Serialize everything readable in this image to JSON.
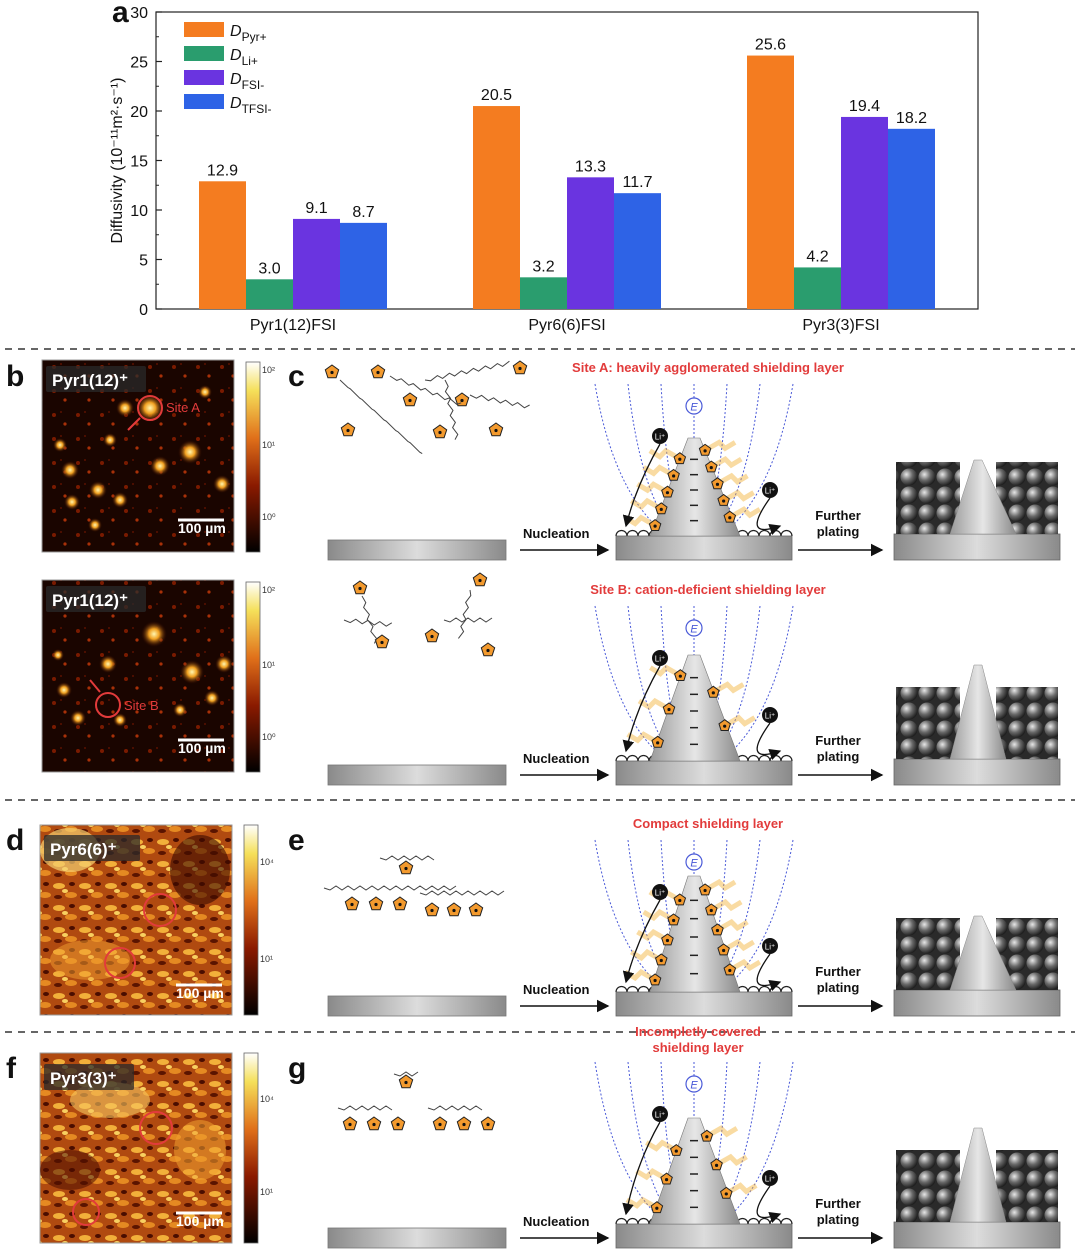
{
  "panels": {
    "a": "a",
    "b": "b",
    "c": "c",
    "d": "d",
    "e": "e",
    "f": "f",
    "g": "g"
  },
  "chart_data": {
    "type": "bar",
    "ylabel": "Diffusivity (10⁻¹¹m²·s⁻¹)",
    "xlabel": "",
    "ylim": [
      0,
      30
    ],
    "yticks": [
      0,
      5,
      10,
      15,
      20,
      25,
      30
    ],
    "categories": [
      "Pyr1(12)FSI",
      "Pyr6(6)FSI",
      "Pyr3(3)FSI"
    ],
    "series": [
      {
        "name": "D_Pyr+",
        "main": "D",
        "sub": "Pyr+",
        "color": "#f47c20",
        "values": [
          12.9,
          20.5,
          25.6
        ],
        "labels": [
          "12.9",
          "20.5",
          "25.6"
        ]
      },
      {
        "name": "D_Li+",
        "main": "D",
        "sub": "Li+",
        "color": "#2a9d6e",
        "values": [
          3.0,
          3.2,
          4.2
        ],
        "labels": [
          "3.0",
          "3.2",
          "4.2"
        ]
      },
      {
        "name": "D_FSI-",
        "main": "D",
        "sub": "FSI-",
        "color": "#6a34e0",
        "values": [
          9.1,
          13.3,
          19.4
        ],
        "labels": [
          "9.1",
          "13.3",
          "19.4"
        ]
      },
      {
        "name": "D_TFSI-",
        "main": "D",
        "sub": "TFSI-",
        "color": "#2e63e6",
        "values": [
          8.7,
          11.7,
          18.2
        ],
        "labels": [
          "8.7",
          "11.7",
          "18.2"
        ]
      }
    ],
    "legend_position": "top-left",
    "grid": false
  },
  "maps": [
    {
      "title": "Pyr1(12)⁺",
      "scale": "100 µm",
      "site": "Site A",
      "ticks": [
        "10²",
        "10¹",
        "10⁰"
      ]
    },
    {
      "title": "Pyr1(12)⁺",
      "scale": "100 µm",
      "site": "Site B",
      "ticks": [
        "10²",
        "10¹",
        "10⁰"
      ]
    },
    {
      "title": "Pyr6(6)⁺",
      "scale": "100 µm",
      "ticks": [
        "10⁴",
        "10¹"
      ]
    },
    {
      "title": "Pyr3(3)⁺",
      "scale": "100 µm",
      "ticks": [
        "10⁴",
        "10¹"
      ]
    }
  ],
  "schematics": [
    {
      "title": "Site A: heavily agglomerated shielding layer",
      "nucleation": "Nucleation",
      "further": "Further",
      "plating": "plating"
    },
    {
      "title": "Site B: cation-deficient shielding layer",
      "nucleation": "Nucleation",
      "further": "Further",
      "plating": "plating"
    },
    {
      "title": "Compact shielding layer",
      "nucleation": "Nucleation",
      "further": "Further",
      "plating": "plating"
    },
    {
      "title_line1": "Incompletly covered",
      "title_line2": "shielding layer",
      "nucleation": "Nucleation",
      "further": "Further",
      "plating": "plating"
    }
  ],
  "symbols": {
    "li": "Li⁺",
    "field": "E"
  }
}
